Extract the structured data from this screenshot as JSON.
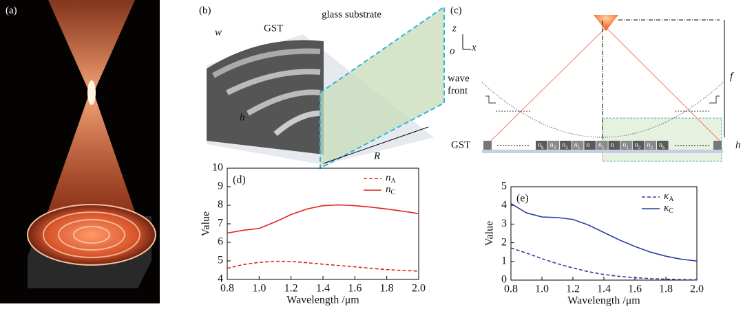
{
  "figure": {
    "a": {
      "label": "(a)"
    },
    "b": {
      "label": "(b)",
      "w": "w",
      "gst": "GST",
      "glass": "glass substrate",
      "h": "h",
      "r": "R"
    },
    "c": {
      "label": "(c)",
      "z": "z",
      "o": "o",
      "x": "x",
      "f": "f",
      "wave_front": [
        "wave",
        "front"
      ],
      "gst": "GST",
      "h": "h",
      "cells": [
        {
          "n": "n",
          "sub": "k"
        },
        {
          "n": "n",
          "sub": "3"
        },
        {
          "n": "n",
          "sub": "2"
        },
        {
          "n": "n",
          "sub": "1"
        },
        {
          "n": "n"
        },
        {
          "n": "n",
          "sub": "1"
        },
        {
          "n": "n"
        },
        {
          "n": "n",
          "sub": "1"
        },
        {
          "n": "n",
          "sub": "2"
        },
        {
          "n": "n",
          "sub": "3"
        },
        {
          "n": "n",
          "sub": "k"
        }
      ]
    }
  },
  "chart_data": [
    {
      "type": "line",
      "title": "(d)",
      "x_label": "Wavelength /μm",
      "y_label": "Value",
      "x": [
        0.8,
        0.9,
        1.0,
        1.1,
        1.2,
        1.3,
        1.4,
        1.5,
        1.6,
        1.7,
        1.8,
        1.9,
        2.0
      ],
      "series": [
        {
          "name": "n",
          "subscript": "A",
          "color": "#e0201b",
          "style": "dashed",
          "values": [
            4.6,
            4.8,
            4.92,
            4.98,
            4.97,
            4.9,
            4.82,
            4.75,
            4.68,
            4.6,
            4.53,
            4.48,
            4.45
          ]
        },
        {
          "name": "n",
          "subscript": "C",
          "color": "#e0201b",
          "style": "solid",
          "values": [
            6.5,
            6.65,
            6.75,
            7.1,
            7.5,
            7.8,
            7.98,
            8.02,
            7.98,
            7.9,
            7.8,
            7.68,
            7.55
          ]
        }
      ],
      "xlim": [
        0.8,
        2.0
      ],
      "xticks": [
        0.8,
        {
          "value": 1,
          "label": "1.0"
        },
        1.2,
        1.4,
        1.6,
        1.8,
        {
          "value": 2,
          "label": "2.0"
        }
      ],
      "ylim": [
        4,
        10
      ],
      "yticks": [
        4,
        5,
        6,
        7,
        8,
        9,
        10
      ],
      "legend": "upper right"
    },
    {
      "type": "line",
      "title": "(e)",
      "x_label": "Wavelength /μm",
      "y_label": "Value",
      "x": [
        0.8,
        0.9,
        1.0,
        1.1,
        1.2,
        1.3,
        1.4,
        1.5,
        1.6,
        1.7,
        1.8,
        1.9,
        2.0
      ],
      "series": [
        {
          "name": "κ",
          "subscript": "A",
          "color": "#2b3f9e",
          "style": "dashed",
          "values": [
            1.72,
            1.45,
            1.15,
            0.88,
            0.65,
            0.45,
            0.3,
            0.2,
            0.13,
            0.08,
            0.05,
            0.03,
            0.02
          ]
        },
        {
          "name": "κ",
          "subscript": "C",
          "color": "#2b3f9e",
          "style": "solid",
          "values": [
            4.1,
            3.6,
            3.38,
            3.35,
            3.25,
            2.95,
            2.55,
            2.15,
            1.8,
            1.5,
            1.28,
            1.12,
            1.02
          ]
        }
      ],
      "xlim": [
        0.8,
        2.0
      ],
      "xticks": [
        0.8,
        {
          "value": 1,
          "label": "1.0"
        },
        1.2,
        1.4,
        1.6,
        1.8,
        {
          "value": 2,
          "label": "2.0"
        }
      ],
      "ylim": [
        0,
        5
      ],
      "yticks": [
        0,
        1,
        2,
        3,
        4,
        5
      ],
      "legend": "upper right"
    }
  ]
}
